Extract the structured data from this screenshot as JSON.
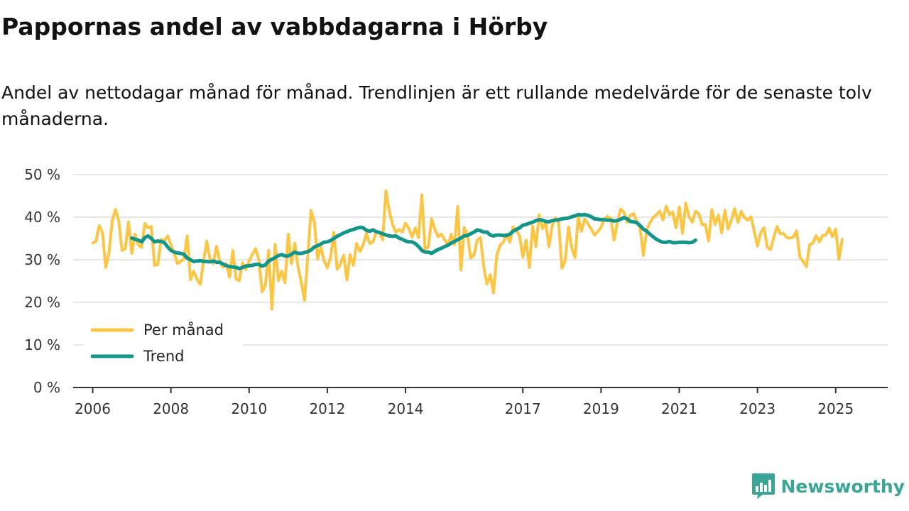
{
  "title": "Pappornas andel av vabbdagarna i Hörby",
  "subtitle": "Andel av nettodagar månad för månad. Trendlinjen är ett rullande medelvärde för de senaste tolv månaderna.",
  "brand": {
    "name": "Newsworthy",
    "icon": "newsworthy-logo-icon",
    "color": "#3aa597"
  },
  "colors": {
    "monthly": "#fcc543",
    "trend": "#12968a",
    "grid": "#dddddd",
    "axis": "#333333"
  },
  "chart_data": {
    "type": "line",
    "x_start": 2006.0,
    "x_step": 0.083333,
    "xlim": [
      2005.5,
      2026.33
    ],
    "ylim": [
      0,
      50
    ],
    "y_ticks": [
      0,
      10,
      20,
      30,
      40,
      50
    ],
    "y_tick_labels": [
      "0 %",
      "10 %",
      "20 %",
      "30 %",
      "40 %",
      "50 %"
    ],
    "x_ticks": [
      2006,
      2008,
      2010,
      2012,
      2014,
      2017,
      2019,
      2021,
      2023,
      2025
    ],
    "x_tick_labels": [
      "2006",
      "2008",
      "2010",
      "2012",
      "2014",
      "2017",
      "2019",
      "2021",
      "2023",
      "2025"
    ],
    "legend": {
      "position": "bottom-left"
    },
    "series": [
      {
        "name": "Per månad",
        "key": "monthly",
        "values": [
          33.9,
          34.3,
          38,
          36.4,
          28.2,
          31.6,
          39.2,
          41.8,
          39.2,
          32.2,
          32.6,
          38.9,
          31.5,
          36,
          33.5,
          32.9,
          38.5,
          37.5,
          37.8,
          28.7,
          28.9,
          34.8,
          34.4,
          35.6,
          33.5,
          31.5,
          29.1,
          29.6,
          30.2,
          35.6,
          25.3,
          27.3,
          25.4,
          24.2,
          29.5,
          34.4,
          30.1,
          29.1,
          33.2,
          29.6,
          28.3,
          29.1,
          25.9,
          32.2,
          25.5,
          25.1,
          29.3,
          27.7,
          29.7,
          31.3,
          32.6,
          29.9,
          22.5,
          24,
          32.2,
          18.4,
          33.6,
          25.1,
          27.3,
          24.6,
          36,
          29.1,
          33.9,
          28.4,
          24.8,
          20.5,
          31,
          41.6,
          38.9,
          30.2,
          33.1,
          29.8,
          28.1,
          30.5,
          36.4,
          27.8,
          28.9,
          31.1,
          25.3,
          31.2,
          28.7,
          33.8,
          32,
          33.5,
          36.2,
          33.8,
          34.2,
          36.4,
          36.3,
          34.7,
          46.2,
          41.5,
          38.3,
          36.5,
          37.1,
          36.5,
          38.6,
          37.4,
          35.3,
          37.5,
          35.2,
          45.2,
          32.4,
          33.1,
          39.6,
          37.2,
          35.4,
          36,
          34.7,
          33.4,
          36,
          33.5,
          42.5,
          27.6,
          37.6,
          35.9,
          30.4,
          31.1,
          34.6,
          35.2,
          28.3,
          24.3,
          26.5,
          22.2,
          31,
          33.4,
          34.1,
          36,
          34.1,
          37.7,
          36.8,
          35.6,
          30.6,
          34.6,
          28.2,
          37.9,
          33.1,
          40.6,
          37.3,
          38.8,
          33.1,
          37.9,
          39.9,
          38.7,
          28,
          29.8,
          37.7,
          32.8,
          30.5,
          40.1,
          36.7,
          39.6,
          38.4,
          37.2,
          35.8,
          36.6,
          37.6,
          39.6,
          40.2,
          39.7,
          34.6,
          38.8,
          41.9,
          41.2,
          38.8,
          40.5,
          40.8,
          39,
          37.4,
          31,
          37,
          38.7,
          39.9,
          40.6,
          41.4,
          39.3,
          42.6,
          40.6,
          41.2,
          37.5,
          42.4,
          36.2,
          43.3,
          40.1,
          38.8,
          41.4,
          40.8,
          38.3,
          38.3,
          34.4,
          41.8,
          38.3,
          40.5,
          36.3,
          41.6,
          37.2,
          39.3,
          42,
          38.8,
          41.4,
          39.9,
          39.3,
          40.1,
          36.8,
          33.2,
          36.4,
          37.5,
          33,
          32.4,
          35.3,
          37.8,
          36.1,
          36.2,
          35.2,
          35.1,
          35.3,
          36.8,
          30.7,
          29.6,
          28.4,
          33.5,
          33.9,
          35.7,
          34.2,
          35.7,
          35.8,
          37.4,
          35.4,
          37.2,
          30.1,
          34.8
        ],
        "x_start": 2006.0
      },
      {
        "name": "Trend",
        "key": "trend",
        "values": [
          35.1,
          34.8,
          34.6,
          34.2,
          35.2,
          35.6,
          35,
          34.2,
          34.4,
          34.3,
          34,
          33,
          32.2,
          31.8,
          31.6,
          31.5,
          31.3,
          30.4,
          30,
          29.6,
          29.7,
          29.8,
          29.6,
          29.6,
          29.5,
          29.7,
          29.4,
          29.4,
          29,
          28.6,
          28.4,
          28.3,
          28.2,
          27.9,
          28.2,
          28.5,
          28.6,
          28.7,
          28.9,
          28.9,
          28.5,
          28.8,
          29.7,
          30.1,
          30.5,
          31,
          31.2,
          30.9,
          30.9,
          31.3,
          31.8,
          31.5,
          31.5,
          31.7,
          31.9,
          32.3,
          33,
          33.3,
          33.7,
          34.1,
          34.2,
          34.5,
          35,
          35.5,
          35.9,
          36.3,
          36.6,
          36.9,
          37.1,
          37.4,
          37.6,
          37.5,
          36.9,
          36.7,
          37,
          36.6,
          36.4,
          36.1,
          35.8,
          35.6,
          35.5,
          35.6,
          35.1,
          34.8,
          34.4,
          34.2,
          34.2,
          33.8,
          33.1,
          32.2,
          31.8,
          31.8,
          31.5,
          32,
          32.4,
          32.7,
          33.1,
          33.4,
          33.9,
          34.3,
          34.7,
          35.1,
          35.6,
          35.7,
          36.1,
          36.5,
          37,
          36.8,
          36.5,
          36.5,
          35.8,
          35.6,
          35.8,
          35.8,
          35.7,
          35.7,
          36,
          36.7,
          37.1,
          37.5,
          38.1,
          38.3,
          38.6,
          38.8,
          39.2,
          39.4,
          39.3,
          39,
          38.9,
          39.2,
          39.3,
          39.4,
          39.6,
          39.7,
          39.8,
          40.1,
          40.3,
          40.6,
          40.5,
          40.6,
          40.4,
          40.1,
          39.6,
          39.5,
          39.4,
          39.4,
          39.3,
          39.3,
          39.1,
          39.2,
          39.5,
          39.9,
          39.6,
          39,
          38.9,
          38.7,
          38,
          37.2,
          36.7,
          36,
          35.4,
          34.8,
          34.4,
          34.1,
          34.1,
          34.3,
          34,
          34,
          34.1,
          34.1,
          34.1,
          34,
          34.1,
          34.6
        ],
        "x_start": 2007.0
      }
    ]
  }
}
